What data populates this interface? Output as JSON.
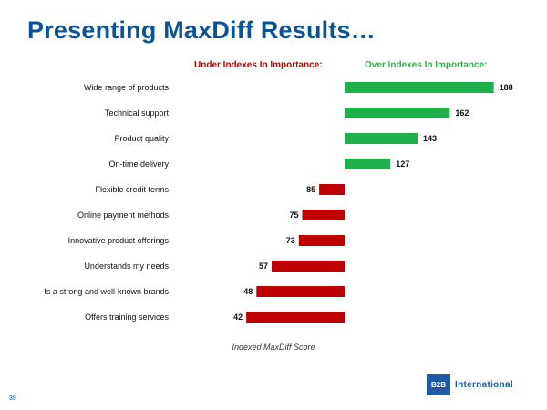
{
  "title": "Presenting MaxDiff Results…",
  "page_number": "39",
  "logo": {
    "mark": "B2B",
    "word": "International"
  },
  "colors": {
    "title": "#0b5394",
    "over": "#20b04b",
    "under": "#c00000"
  },
  "chart_data": {
    "type": "bar",
    "orientation": "horizontal",
    "baseline": 100,
    "xlim": [
      40,
      190
    ],
    "under_label": "Under Indexes In Importance:",
    "over_label": "Over Indexes In Importance:",
    "xlabel": "Indexed MaxDiff Score",
    "categories": [
      "Wide range of products",
      "Technical support",
      "Product quality",
      "On-time delivery",
      "Flexible credit terms",
      "Online payment methods",
      "Innovative product offerings",
      "Understands my needs",
      "Is a strong and well-known brands",
      "Offers training services"
    ],
    "values": [
      188,
      162,
      143,
      127,
      85,
      75,
      73,
      57,
      48,
      42
    ]
  }
}
